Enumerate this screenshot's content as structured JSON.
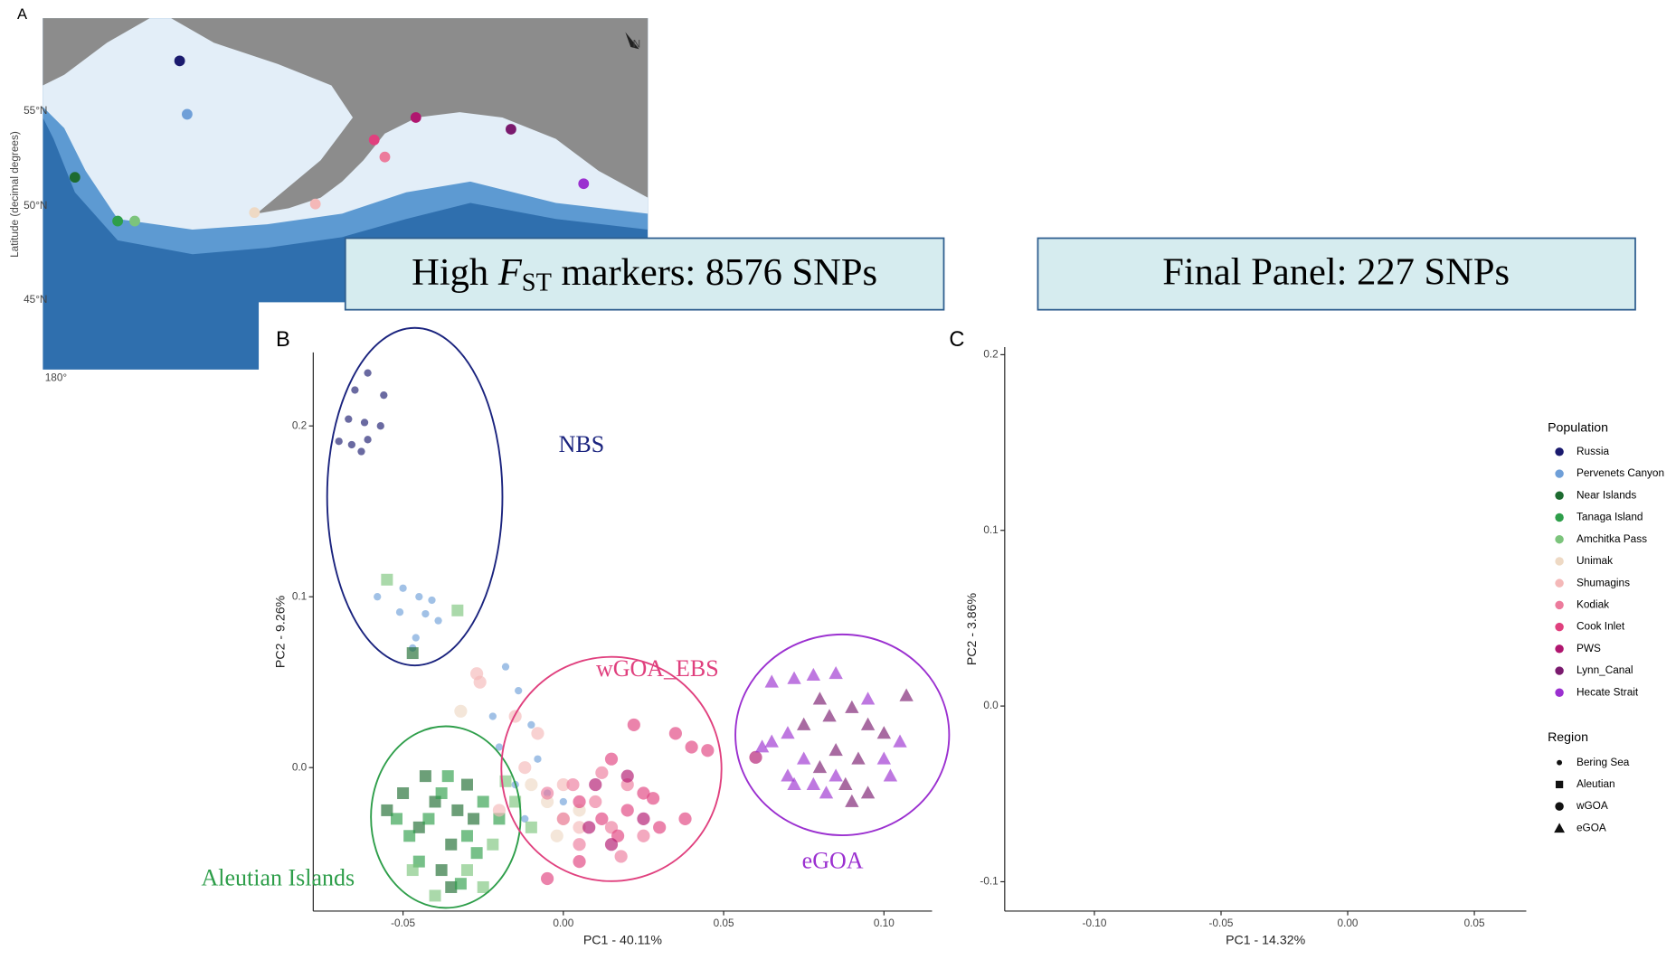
{
  "map_panel": {
    "panel_label": "A",
    "y_axis_label": "Latitude (decimal degrees)",
    "lat_labels": [
      "55°N",
      "50°N",
      "45°N"
    ],
    "lon_label": "180°",
    "north": "N"
  },
  "chart_data": [
    {
      "type": "scatter",
      "panel_label": "B",
      "title_prefix": "High ",
      "title_symbol": "F",
      "title_subscript": "ST",
      "title_suffix": " markers: 8576 SNPs",
      "x_label": "PC1 - 40.11%",
      "y_label": "PC2 - 9.26%",
      "xlim": [
        -0.078,
        0.115
      ],
      "ylim": [
        -0.084,
        0.243
      ],
      "xticks": [
        -0.05,
        {
          "value": 0,
          "label": "0.00"
        },
        0.05,
        {
          "value": 0.1,
          "label": "0.10"
        }
      ],
      "yticks": [
        {
          "value": 0,
          "label": "0.0"
        },
        0.1,
        0.2
      ],
      "annotations": [
        {
          "text": "NBS",
          "color": "#1a237e"
        },
        {
          "text": "wGOA_EBS",
          "color": "#e0407e"
        },
        {
          "text": "eGOA",
          "color": "#9b30d0"
        },
        {
          "text": "Aleutian Islands",
          "color": "#2e9e4a"
        }
      ],
      "series": [
        {
          "name": "Russia",
          "color": "#1a1a6e",
          "shape": "dot",
          "x": [
            -0.061,
            -0.065,
            -0.056,
            -0.067,
            -0.062,
            -0.057,
            -0.07,
            -0.066,
            -0.061,
            -0.063
          ],
          "values": [
            0.231,
            0.221,
            0.218,
            0.204,
            0.202,
            0.2,
            0.191,
            0.189,
            0.192,
            0.185
          ]
        },
        {
          "name": "Pervenets Canyon",
          "color": "#6f9fd8",
          "shape": "dot",
          "x": [
            -0.058,
            -0.05,
            -0.045,
            -0.041,
            -0.051,
            -0.043,
            -0.039,
            -0.046,
            -0.047,
            -0.018,
            -0.014,
            -0.022,
            -0.01,
            -0.02,
            -0.008,
            -0.015,
            -0.005,
            0,
            -0.012
          ],
          "values": [
            0.1,
            0.105,
            0.1,
            0.098,
            0.091,
            0.09,
            0.086,
            0.076,
            0.07,
            0.059,
            0.045,
            0.03,
            0.025,
            0.012,
            0.005,
            -0.01,
            -0.015,
            -0.02,
            -0.03
          ]
        },
        {
          "name": "Near Islands",
          "color": "#1d6b30",
          "shape": "square",
          "x": [
            -0.047,
            -0.055,
            -0.045,
            -0.04,
            -0.035,
            -0.03,
            -0.038,
            -0.05,
            -0.028,
            -0.035,
            -0.043,
            -0.033
          ],
          "values": [
            0.067,
            -0.025,
            -0.035,
            -0.02,
            -0.045,
            -0.01,
            -0.06,
            -0.015,
            -0.03,
            -0.07,
            -0.005,
            -0.025
          ]
        },
        {
          "name": "Tanaga Island",
          "color": "#2e9e4a",
          "shape": "square",
          "x": [
            -0.048,
            -0.042,
            -0.038,
            -0.03,
            -0.025,
            -0.045,
            -0.036,
            -0.02,
            -0.027,
            -0.052,
            -0.032
          ],
          "values": [
            -0.04,
            -0.03,
            -0.015,
            -0.04,
            -0.02,
            -0.055,
            -0.005,
            -0.03,
            -0.05,
            -0.03,
            -0.068
          ]
        },
        {
          "name": "Amchitka Pass",
          "color": "#7cc47c",
          "shape": "square",
          "x": [
            -0.055,
            -0.033,
            -0.04,
            -0.03,
            -0.022,
            -0.047,
            -0.015,
            -0.01,
            -0.025,
            -0.018
          ],
          "values": [
            0.11,
            0.092,
            -0.075,
            -0.06,
            -0.045,
            -0.06,
            -0.02,
            -0.035,
            -0.07,
            -0.008
          ]
        },
        {
          "name": "Unimak",
          "color": "#eed9c4",
          "shape": "circle",
          "x": [
            -0.032,
            -0.005,
            0,
            -0.01,
            0.005,
            -0.002
          ],
          "values": [
            0.033,
            -0.02,
            -0.03,
            -0.01,
            -0.025,
            -0.04
          ]
        },
        {
          "name": "Shumagins",
          "color": "#f4b8b8",
          "shape": "circle",
          "x": [
            -0.027,
            -0.026,
            -0.015,
            -0.008,
            -0.012,
            0,
            0.005,
            -0.02
          ],
          "values": [
            0.055,
            0.05,
            0.03,
            0.02,
            0,
            -0.01,
            -0.035,
            -0.025
          ]
        },
        {
          "name": "Kodiak",
          "color": "#ec7b9c",
          "shape": "circle",
          "x": [
            0,
            0.01,
            0.015,
            0.005,
            0.02,
            0.025,
            -0.005,
            0.012,
            0.018,
            0.003
          ],
          "values": [
            -0.03,
            -0.02,
            -0.035,
            -0.045,
            -0.01,
            -0.04,
            -0.015,
            -0.003,
            -0.052,
            -0.01
          ]
        },
        {
          "name": "Cook Inlet",
          "color": "#e0407e",
          "shape": "circle",
          "x": [
            0.022,
            0.035,
            0.04,
            0.045,
            0.015,
            0.005,
            0.012,
            0.02,
            0.03,
            0.017,
            0.025,
            0.005,
            0.038,
            -0.005,
            0.028
          ],
          "values": [
            0.025,
            0.02,
            0.012,
            0.01,
            0.005,
            -0.02,
            -0.03,
            -0.025,
            -0.035,
            -0.04,
            -0.015,
            -0.055,
            -0.03,
            -0.065,
            -0.018
          ]
        },
        {
          "name": "PWS",
          "color": "#b0166f",
          "shape": "circle",
          "x": [
            0.06,
            0.01,
            0.02,
            0.025,
            0.008,
            0.015
          ],
          "values": [
            0.006,
            -0.01,
            -0.005,
            -0.03,
            -0.035,
            -0.045
          ]
        },
        {
          "name": "Lynn_Canal",
          "color": "#7a1a6e",
          "shape": "triangle",
          "x": [
            0.08,
            0.083,
            0.09,
            0.095,
            0.1,
            0.075,
            0.085,
            0.092,
            0.088,
            0.095,
            0.08,
            0.09,
            0.107
          ],
          "values": [
            0.04,
            0.03,
            0.035,
            0.025,
            0.02,
            0.025,
            0.01,
            0.005,
            -0.01,
            -0.015,
            0,
            -0.02,
            0.042
          ]
        },
        {
          "name": "Hecate Strait",
          "color": "#9b30d0",
          "shape": "triangle",
          "x": [
            0.065,
            0.072,
            0.078,
            0.085,
            0.07,
            0.065,
            0.062,
            0.075,
            0.07,
            0.078,
            0.085,
            0.1,
            0.105,
            0.072,
            0.095,
            0.082,
            0.102
          ],
          "values": [
            0.05,
            0.052,
            0.054,
            0.055,
            0.02,
            0.015,
            0.012,
            0.005,
            -0.005,
            -0.01,
            -0.005,
            0.005,
            0.015,
            -0.01,
            0.04,
            -0.015,
            -0.005
          ]
        }
      ]
    },
    {
      "type": "scatter",
      "panel_label": "C",
      "title": "Final Panel: 227 SNPs",
      "x_label": "PC1 - 14.32%",
      "y_label": "PC2 - 3.86%",
      "xlim": [
        -0.1354,
        0.0705
      ],
      "ylim": [
        -0.1167,
        0.2043
      ],
      "xticks": [
        {
          "value": -0.1,
          "label": "-0.10"
        },
        -0.05,
        {
          "value": 0,
          "label": "0.00"
        },
        0.05
      ],
      "yticks": [
        -0.1,
        {
          "value": 0,
          "label": "0.0"
        },
        0.1,
        0.2
      ],
      "series": [],
      "legend": {
        "position": "right",
        "population_title": "Population",
        "populations": [
          {
            "name": "Russia",
            "color": "#1a1a6e"
          },
          {
            "name": "Pervenets Canyon",
            "color": "#6f9fd8"
          },
          {
            "name": "Near Islands",
            "color": "#1d6b30"
          },
          {
            "name": "Tanaga Island",
            "color": "#2e9e4a"
          },
          {
            "name": "Amchitka Pass",
            "color": "#7cc47c"
          },
          {
            "name": "Unimak",
            "color": "#eed9c4"
          },
          {
            "name": "Shumagins",
            "color": "#f4b8b8"
          },
          {
            "name": "Kodiak",
            "color": "#ec7b9c"
          },
          {
            "name": "Cook Inlet",
            "color": "#e0407e"
          },
          {
            "name": "PWS",
            "color": "#b0166f"
          },
          {
            "name": "Lynn_Canal",
            "color": "#7a1a6e"
          },
          {
            "name": "Hecate Strait",
            "color": "#9b30d0"
          }
        ],
        "region_title": "Region",
        "regions": [
          {
            "name": "Bering Sea",
            "shape": "dot"
          },
          {
            "name": "Aleutian",
            "shape": "square"
          },
          {
            "name": "wGOA",
            "shape": "circle"
          },
          {
            "name": "eGOA",
            "shape": "triangle"
          }
        ]
      }
    }
  ]
}
